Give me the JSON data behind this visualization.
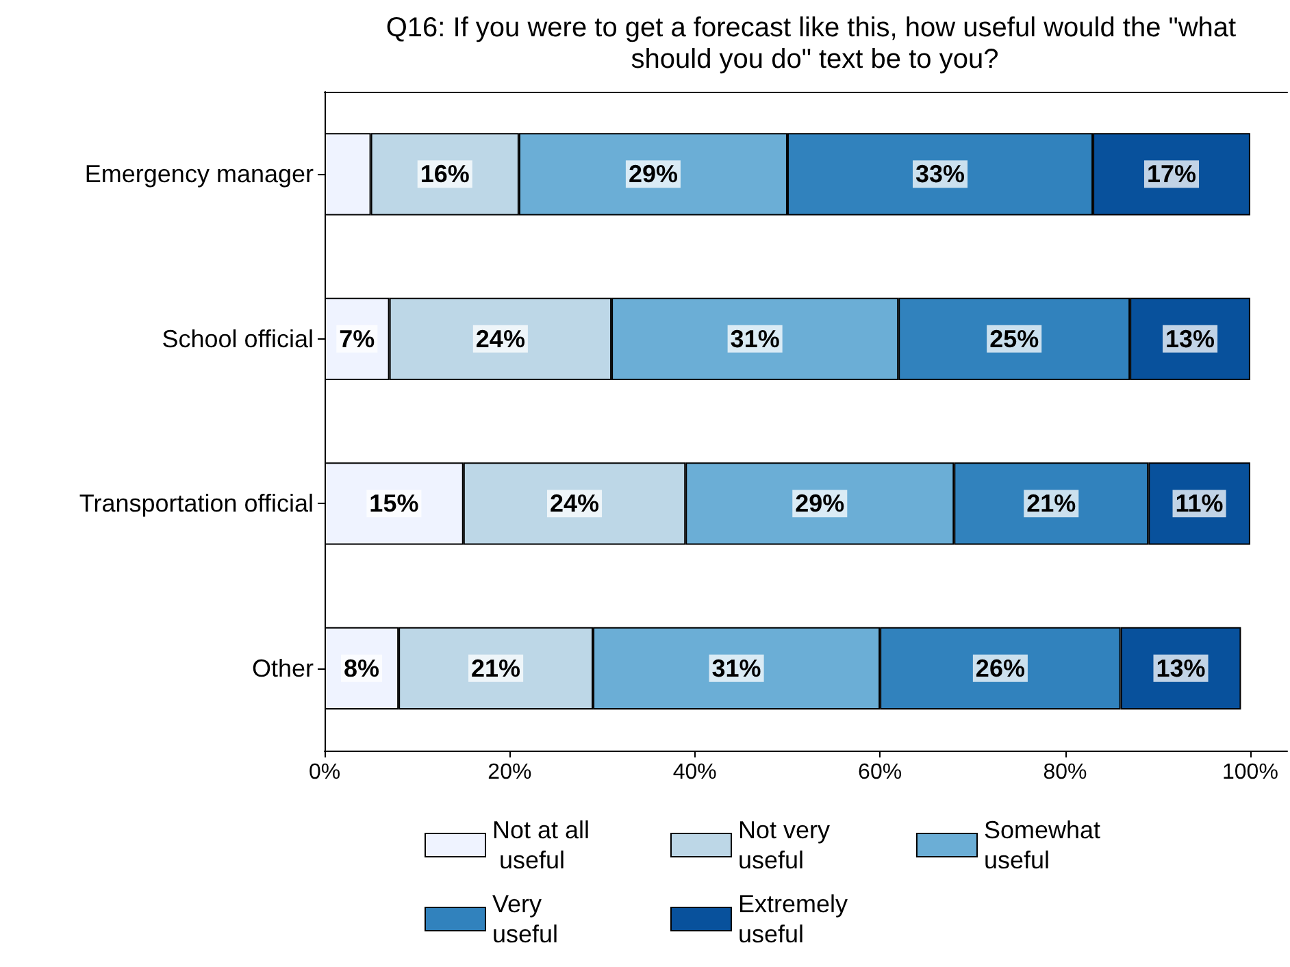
{
  "chart_data": {
    "type": "bar",
    "orientation": "horizontal",
    "stacked": true,
    "title": "Q16: If you were to get a forecast like this, how useful would the \"what should you do\" text be to you?",
    "categories": [
      "Emergency manager",
      "School official",
      "Transportation official",
      "Other"
    ],
    "series": [
      {
        "name": "Not at all useful",
        "color": "#eff3ff",
        "values": [
          5,
          7,
          15,
          8
        ],
        "value_labels": [
          null,
          "7%",
          "15%",
          "8%"
        ]
      },
      {
        "name": "Not very useful",
        "color": "#bdd7e7",
        "values": [
          16,
          24,
          24,
          21
        ],
        "value_labels": [
          "16%",
          "24%",
          "24%",
          "21%"
        ]
      },
      {
        "name": "Somewhat useful",
        "color": "#6baed6",
        "values": [
          29,
          31,
          29,
          31
        ],
        "value_labels": [
          "29%",
          "31%",
          "29%",
          "31%"
        ]
      },
      {
        "name": "Very useful",
        "color": "#3182bd",
        "values": [
          33,
          25,
          21,
          26
        ],
        "value_labels": [
          "33%",
          "25%",
          "21%",
          "26%"
        ]
      },
      {
        "name": "Extremely useful",
        "color": "#08519c",
        "values": [
          17,
          13,
          11,
          13
        ],
        "value_labels": [
          "17%",
          "13%",
          "11%",
          "13%"
        ]
      }
    ],
    "xlim": [
      0,
      104
    ],
    "xticks": [
      {
        "value": 0,
        "label": "0%"
      },
      {
        "value": 20,
        "label": "20%"
      },
      {
        "value": 40,
        "label": "40%"
      },
      {
        "value": 60,
        "label": "60%"
      },
      {
        "value": 80,
        "label": "80%"
      },
      {
        "value": 100,
        "label": "100%"
      }
    ],
    "grid": false,
    "legend": "bottom"
  }
}
